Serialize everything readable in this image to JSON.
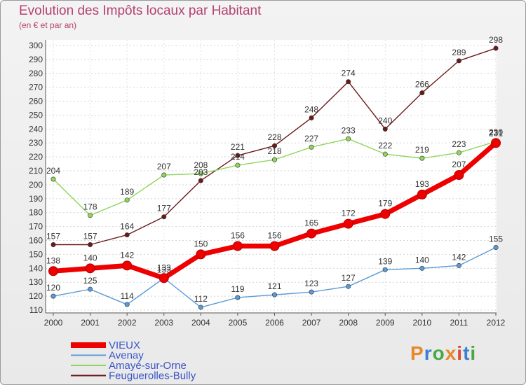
{
  "title": "Evolution des Impôts locaux par Habitant",
  "subtitle": "(en € et par an)",
  "logo": {
    "text": "Proxiti",
    "colors": [
      "#e8882a",
      "#3a7fd0",
      "#4aa844",
      "#e8882a",
      "#d84a3a",
      "#3a7fd0",
      "#4aa844"
    ]
  },
  "chart_data": {
    "type": "line",
    "x": [
      "2000",
      "2001",
      "2002",
      "2003",
      "2004",
      "2005",
      "2006",
      "2007",
      "2008",
      "2009",
      "2010",
      "2011",
      "2012"
    ],
    "yticks": [
      110,
      120,
      130,
      140,
      150,
      160,
      170,
      180,
      190,
      200,
      210,
      220,
      230,
      240,
      250,
      260,
      270,
      280,
      290,
      300
    ],
    "ylim": [
      108,
      304
    ],
    "legend_position": "bottom-left",
    "series": [
      {
        "name": "VIEUX",
        "color": "#ee0000",
        "values": [
          138,
          140,
          142,
          133,
          150,
          156,
          156,
          165,
          172,
          179,
          193,
          207,
          230
        ]
      },
      {
        "name": "Avenay",
        "color": "#5b9bd5",
        "values": [
          120,
          125,
          114,
          133,
          112,
          119,
          121,
          123,
          127,
          139,
          140,
          142,
          155
        ]
      },
      {
        "name": "Amayé-sur-Orne",
        "color": "#8fd65a",
        "values": [
          204,
          178,
          189,
          207,
          208,
          214,
          218,
          227,
          233,
          222,
          219,
          223,
          231
        ]
      },
      {
        "name": "Feuguerolles-Bully",
        "color": "#6b1a1a",
        "values": [
          157,
          157,
          164,
          177,
          203,
          221,
          228,
          248,
          274,
          240,
          266,
          289,
          298
        ]
      }
    ]
  }
}
